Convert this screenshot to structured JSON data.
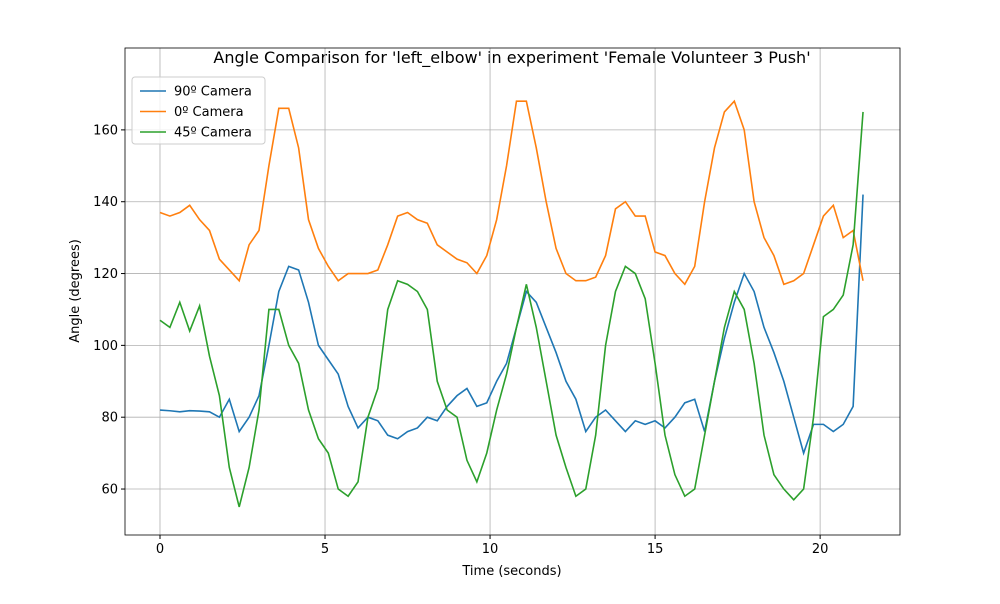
{
  "chart_data": {
    "type": "line",
    "title": "Angle Comparison for 'left_elbow' in experiment 'Female Volunteer 3 Push'",
    "xlabel": "Time (seconds)",
    "ylabel": "Angle (degrees)",
    "x": [
      0,
      0.3,
      0.6,
      0.9,
      1.2,
      1.5,
      1.8,
      2.1,
      2.4,
      2.7,
      3.0,
      3.3,
      3.6,
      3.9,
      4.2,
      4.5,
      4.8,
      5.1,
      5.4,
      5.7,
      6.0,
      6.3,
      6.6,
      6.9,
      7.2,
      7.5,
      7.8,
      8.1,
      8.4,
      8.7,
      9.0,
      9.3,
      9.6,
      9.9,
      10.2,
      10.5,
      10.8,
      11.1,
      11.4,
      11.7,
      12.0,
      12.3,
      12.6,
      12.9,
      13.2,
      13.5,
      13.8,
      14.1,
      14.4,
      14.7,
      15.0,
      15.3,
      15.6,
      15.9,
      16.2,
      16.5,
      16.8,
      17.1,
      17.4,
      17.7,
      18.0,
      18.3,
      18.6,
      18.9,
      19.2,
      19.5,
      19.8,
      20.1,
      20.4,
      20.7,
      21.0,
      21.3
    ],
    "series": [
      {
        "name": "90º Camera",
        "color": "#1f77b4",
        "values": [
          82,
          81.8,
          81.5,
          81.8,
          81.7,
          81.5,
          80,
          85,
          76,
          80,
          86,
          100,
          115,
          122,
          121,
          112,
          100,
          96,
          92,
          83,
          77,
          80,
          79,
          75,
          74,
          76,
          77,
          80,
          79,
          83,
          86,
          88,
          83,
          84,
          90,
          95,
          105,
          115,
          112,
          105,
          98,
          90,
          85,
          76,
          80,
          82,
          79,
          76,
          79,
          78,
          79,
          77,
          80,
          84,
          85,
          76,
          90,
          102,
          112,
          120,
          115,
          105,
          98,
          90,
          80,
          70,
          78,
          78,
          76,
          78,
          83,
          142
        ]
      },
      {
        "name": "0º Camera",
        "color": "#ff7f0e",
        "values": [
          137,
          136,
          137,
          139,
          135,
          132,
          124,
          121,
          118,
          128,
          132,
          150,
          166,
          166,
          155,
          135,
          127,
          122,
          118,
          120,
          120,
          120,
          121,
          128,
          136,
          137,
          135,
          134,
          128,
          126,
          124,
          123,
          120,
          125,
          135,
          150,
          168,
          168,
          155,
          140,
          127,
          120,
          118,
          118,
          119,
          125,
          138,
          140,
          136,
          136,
          126,
          125,
          120,
          117,
          122,
          140,
          155,
          165,
          168,
          160,
          140,
          130,
          125,
          117,
          118,
          120,
          128,
          136,
          139,
          130,
          132,
          118
        ]
      },
      {
        "name": "45º Camera",
        "color": "#2ca02c",
        "values": [
          107,
          105,
          112,
          104,
          111,
          97,
          86,
          66,
          55,
          66,
          82,
          110,
          110,
          100,
          95,
          82,
          74,
          70,
          60,
          58,
          62,
          80,
          88,
          110,
          118,
          117,
          115,
          110,
          90,
          82,
          80,
          68,
          62,
          70,
          82,
          92,
          105,
          117,
          105,
          90,
          75,
          66,
          58,
          60,
          75,
          100,
          115,
          122,
          120,
          113,
          95,
          75,
          64,
          58,
          60,
          75,
          90,
          105,
          115,
          110,
          95,
          75,
          64,
          60,
          57,
          60,
          80,
          108,
          110,
          114,
          128,
          165
        ]
      }
    ],
    "xlim": [
      -1.06,
      22.42
    ],
    "ylim": [
      47.2,
      182.8
    ],
    "xticks": [
      0,
      5,
      10,
      15,
      20
    ],
    "yticks": [
      60,
      80,
      100,
      120,
      140,
      160
    ],
    "grid": true,
    "legend": "upper left"
  }
}
